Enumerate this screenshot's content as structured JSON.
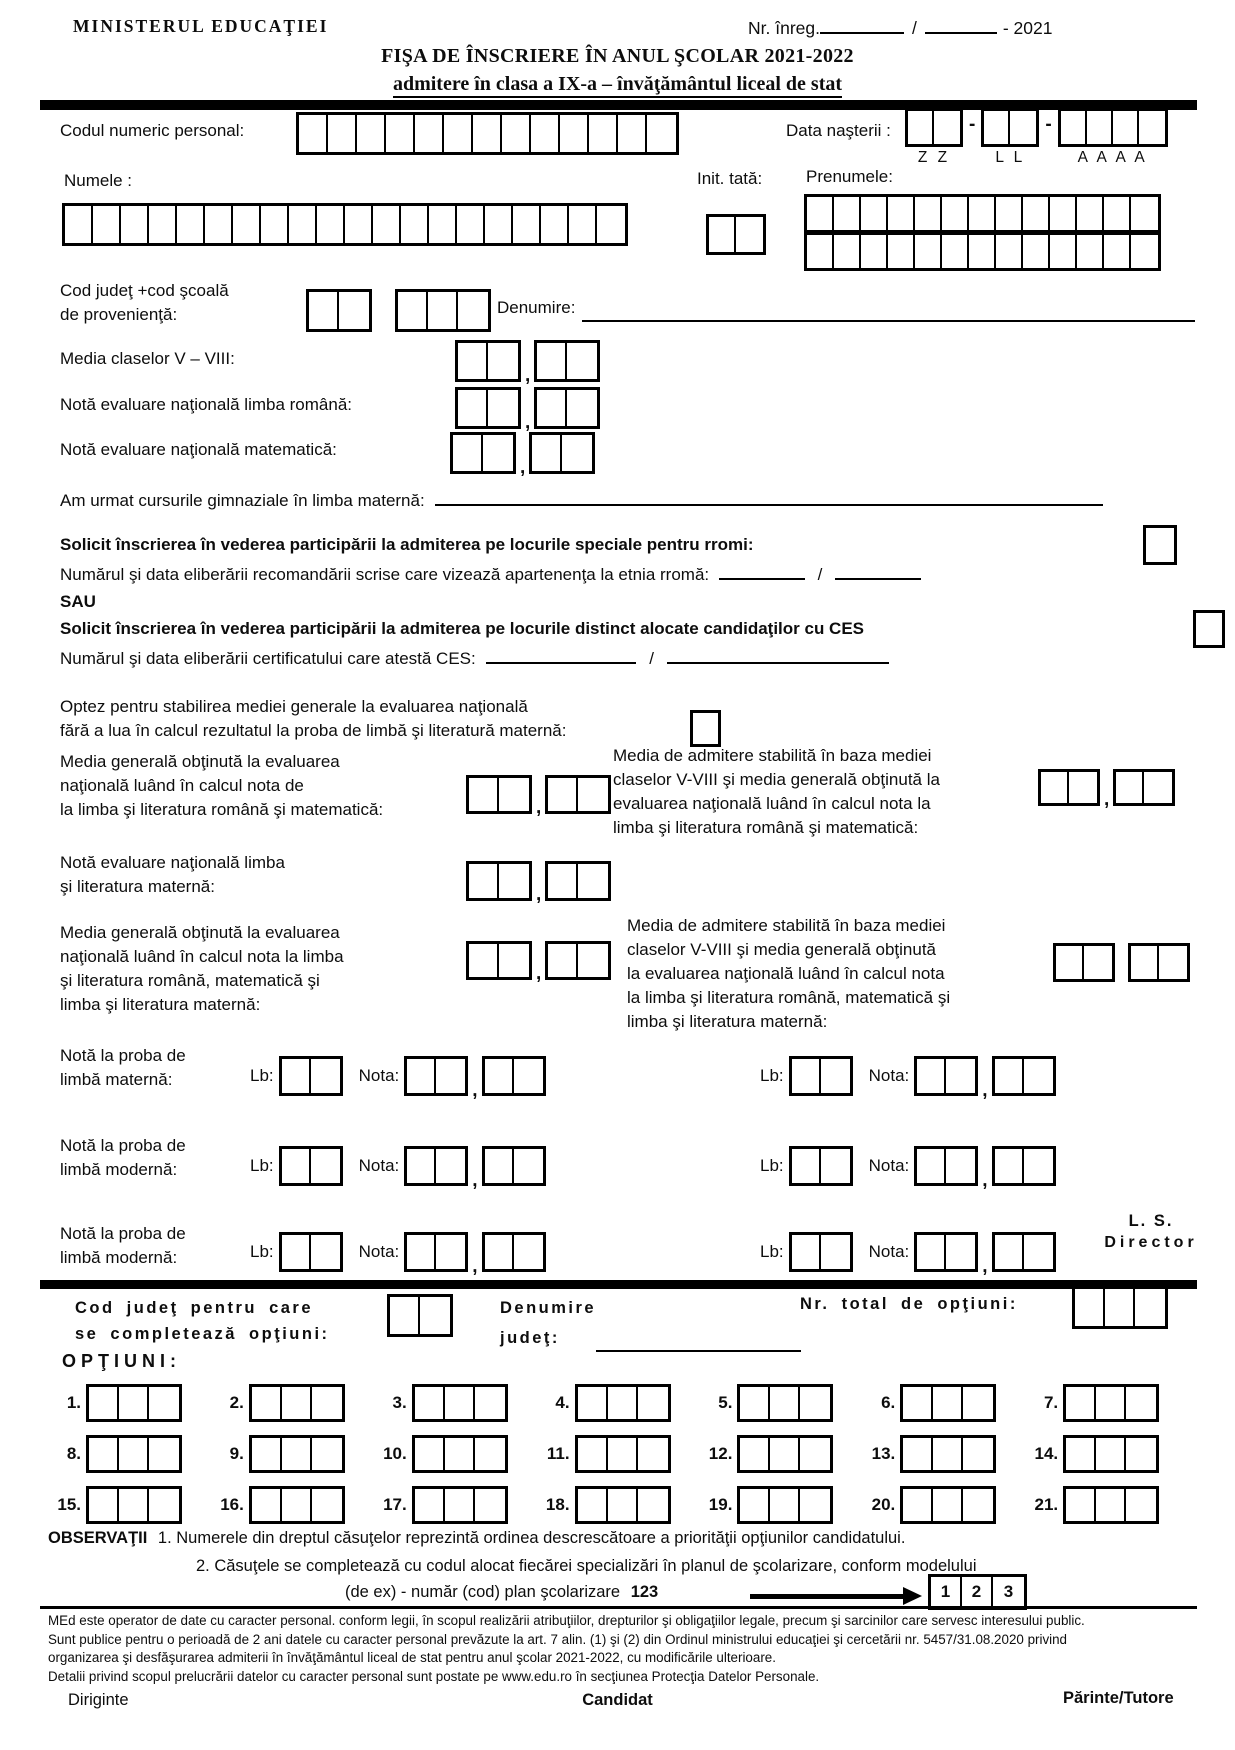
{
  "punct": {
    "comma": ",",
    "slash": "/",
    "dash": "-"
  },
  "header": {
    "ministry": "MINISTERUL EDUCAŢIEI",
    "reg_label": "Nr. înreg.",
    "reg_year": "- 2021",
    "title_line1": "FIŞA DE ÎNSCRIERE ÎN ANUL ŞCOLAR 2021-2022",
    "title_line2": "admitere în clasa a IX-a – învăţământul liceal de stat"
  },
  "identity": {
    "cnp_label": "Codul numeric personal:",
    "dob_label": "Data naşterii :",
    "dob_day_hint": "Z Z",
    "dob_month_hint": "L L",
    "dob_year_hint": "A A A A",
    "name_label": "Numele :",
    "father_initial_label": "Init. tată:",
    "firstname_label": "Prenumele:"
  },
  "school": {
    "code_label_line1": "Cod judeţ +cod şcoală",
    "code_label_line2": "de provenienţă:",
    "denumire_label": "Denumire:"
  },
  "grades": {
    "media_label": "Media claselor V – VIII:",
    "romana_label": "Notă evaluare naţională limba română:",
    "mate_label": "Notă evaluare naţională matematică:",
    "materna_label": "Am urmat cursurile gimnaziale în limba maternă:"
  },
  "special": {
    "rromi_bold": "Solicit înscrierea în vederea participării la admiterea pe locurile speciale pentru rromi:",
    "rromi_detail": "Numărul şi data eliberării recomandării scrise care vizează apartenenţa la etnia rromă:",
    "sau": "SAU",
    "ces_bold": "Solicit înscrierea în vederea participării la admiterea pe locurile distinct alocate candidaţilor cu CES",
    "ces_detail": "Numărul şi data eliberării certificatului care atestă CES:"
  },
  "optez": {
    "line1": "Optez pentru stabilirea mediei generale la evaluarea naţională",
    "line2": "fără a lua în calcul rezultatul la proba de limbă şi literatură maternă:"
  },
  "media1": {
    "left": [
      "Media generală obţinută la evaluarea",
      "naţională luând în calcul nota de",
      "la limba şi literatura română şi matematică:"
    ],
    "right": [
      "Media de admitere stabilită în baza mediei",
      "claselor V-VIII şi media generală obţinută la",
      "evaluarea naţională luând în calcul nota la",
      "limba şi literatura română şi matematică:"
    ]
  },
  "nota_materna": {
    "line1": "Notă evaluare naţională limba",
    "line2": "şi literatura maternă:"
  },
  "media2": {
    "left": [
      "Media generală obţinută la evaluarea",
      "naţională luând în calcul nota la  limba",
      "şi literatura română, matematică şi",
      "limba şi literatura maternă:"
    ],
    "right": [
      "Media de admitere stabilită în baza mediei",
      "claselor V-VIII şi media generală obţinută",
      "la evaluarea naţională luând în calcul nota",
      "la limba şi literatura română, matematică şi",
      "limba şi literatura maternă:"
    ]
  },
  "proba": {
    "lb_label": "Lb:",
    "nota_label": "Nota:",
    "rows": [
      {
        "line1": "Notă la proba de",
        "line2": "limbă maternă:"
      },
      {
        "line1": "Notă la proba de",
        "line2": "limbă modernă:"
      },
      {
        "line1": "Notă la proba de",
        "line2": "limbă modernă:"
      }
    ],
    "ls_line1": "L. S.",
    "ls_line2": "Director"
  },
  "options_section": {
    "cod_line1": "Cod judeţ pentru care",
    "cod_line2": "se completează opţiuni:",
    "denumire_line1": "Denumire",
    "denumire_line2": "judeţ:",
    "total_label": "Nr. total de opţiuni:",
    "title": "OPŢIUNI:",
    "labels": [
      "1.",
      "2.",
      "3.",
      "4.",
      "5.",
      "6.",
      "7.",
      "8.",
      "9.",
      "10.",
      "11.",
      "12.",
      "13.",
      "14.",
      "15.",
      "16.",
      "17.",
      "18.",
      "19.",
      "20.",
      "21."
    ]
  },
  "observatii": {
    "head": "OBSERVAŢII",
    "line1": "1. Numerele din dreptul căsuţelor reprezintă ordinea descrescătoare a priorităţii opţiunilor candidatului.",
    "line2": "2. Căsuţele se completează cu codul alocat fiecărei specializări în planul de şcolarizare, conform modelului",
    "line3_text": "(de ex) - număr (cod) plan şcolarizare",
    "line3_bold": "123",
    "example_digits": [
      "1",
      "2",
      "3"
    ]
  },
  "footer": {
    "lines": [
      "MEd este operator de date cu caracter personal. conform legii, în scopul realizării atribuţiilor, drepturilor şi obligaţiilor legale, precum şi sarcinilor care servesc interesului public.",
      "Sunt publice pentru o perioadă de 2 ani datele cu caracter personal prevăzute la art. 7 alin. (1) şi (2) din Ordinul ministrului educaţiei şi cercetării nr. 5457/31.08.2020 privind",
      "organizarea şi desfăşurarea admiterii în învăţământul liceal de stat pentru anul şcolar 2021-2022, cu modificările ulterioare.",
      "Detalii privind scopul prelucrării datelor cu caracter personal sunt postate pe www.edu.ro în secţiunea Protecţia Datelor Personale."
    ],
    "sign_left": "Diriginte",
    "sign_center": "Candidat",
    "sign_right": "Părinte/Tutore"
  }
}
